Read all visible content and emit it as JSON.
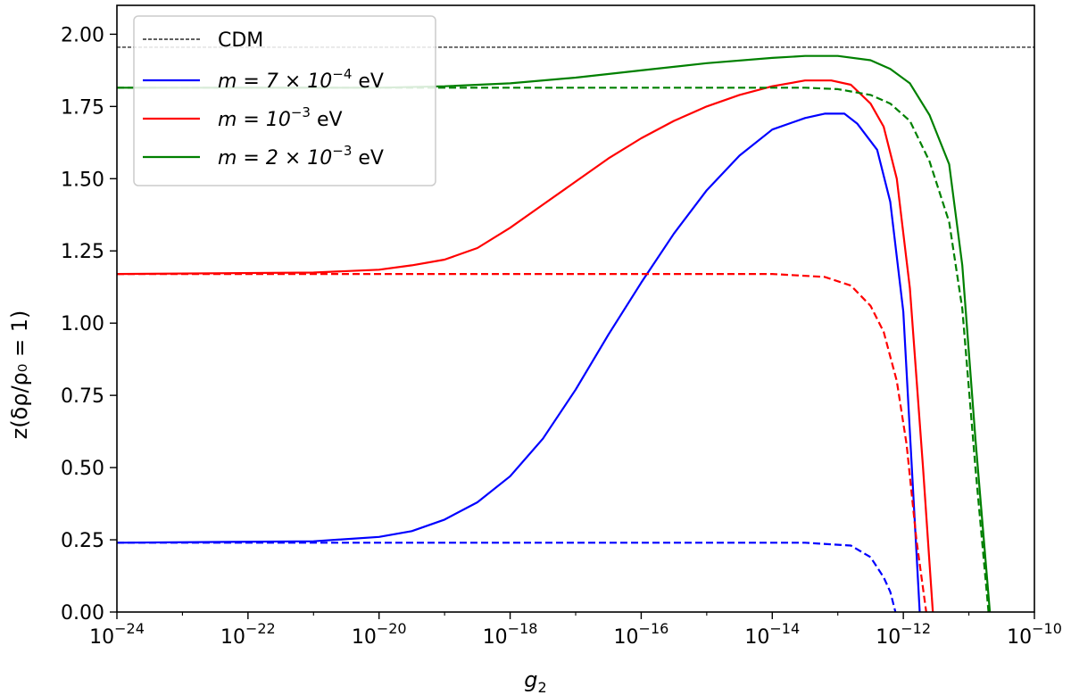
{
  "chart_data": {
    "type": "line",
    "xscale": "log",
    "xlim": [
      1e-24,
      1e-10
    ],
    "ylim": [
      0,
      2.1
    ],
    "xlabel": "g",
    "xlabel_sub": "2",
    "ylabel": "z(δρ/ρ₀ = 1)",
    "grid": false,
    "legend_position": "top-left",
    "x_ticks": [
      {
        "base": "10",
        "exp": "−24"
      },
      {
        "base": "10",
        "exp": "−22"
      },
      {
        "base": "10",
        "exp": "−20"
      },
      {
        "base": "10",
        "exp": "−18"
      },
      {
        "base": "10",
        "exp": "−16"
      },
      {
        "base": "10",
        "exp": "−14"
      },
      {
        "base": "10",
        "exp": "−12"
      },
      {
        "base": "10",
        "exp": "−10"
      }
    ],
    "y_ticks": [
      "0.00",
      "0.25",
      "0.50",
      "0.75",
      "1.00",
      "1.25",
      "1.50",
      "1.75",
      "2.00"
    ],
    "cdm": {
      "name": "CDM",
      "value": 1.955,
      "color": "#000000"
    },
    "series": [
      {
        "name_prefix": "m = 7 × 10",
        "name_exp": "−4",
        "name_suffix": " eV",
        "color": "#0000ff",
        "solid": [
          [
            -24,
            0.24
          ],
          [
            -21,
            0.245
          ],
          [
            -20,
            0.26
          ],
          [
            -19.5,
            0.28
          ],
          [
            -19,
            0.32
          ],
          [
            -18.5,
            0.38
          ],
          [
            -18,
            0.47
          ],
          [
            -17.5,
            0.6
          ],
          [
            -17,
            0.77
          ],
          [
            -16.5,
            0.96
          ],
          [
            -16,
            1.14
          ],
          [
            -15.5,
            1.31
          ],
          [
            -15,
            1.46
          ],
          [
            -14.5,
            1.58
          ],
          [
            -14,
            1.67
          ],
          [
            -13.5,
            1.71
          ],
          [
            -13.2,
            1.725
          ],
          [
            -12.9,
            1.725
          ],
          [
            -12.7,
            1.69
          ],
          [
            -12.4,
            1.6
          ],
          [
            -12.2,
            1.42
          ],
          [
            -12.0,
            1.04
          ],
          [
            -11.75,
            0.0
          ]
        ],
        "dashed": [
          [
            -24,
            0.24
          ],
          [
            -15,
            0.24
          ],
          [
            -13.5,
            0.24
          ],
          [
            -12.8,
            0.23
          ],
          [
            -12.5,
            0.19
          ],
          [
            -12.3,
            0.12
          ],
          [
            -12.2,
            0.07
          ],
          [
            -12.12,
            0.0
          ]
        ]
      },
      {
        "name_prefix": "m = 10",
        "name_exp": "−3",
        "name_suffix": " eV",
        "color": "#ff0000",
        "solid": [
          [
            -24,
            1.17
          ],
          [
            -21,
            1.175
          ],
          [
            -20,
            1.185
          ],
          [
            -19.5,
            1.2
          ],
          [
            -19,
            1.22
          ],
          [
            -18.5,
            1.26
          ],
          [
            -18,
            1.33
          ],
          [
            -17.5,
            1.41
          ],
          [
            -17,
            1.49
          ],
          [
            -16.5,
            1.57
          ],
          [
            -16,
            1.64
          ],
          [
            -15.5,
            1.7
          ],
          [
            -15,
            1.75
          ],
          [
            -14.5,
            1.79
          ],
          [
            -14,
            1.82
          ],
          [
            -13.5,
            1.84
          ],
          [
            -13.1,
            1.84
          ],
          [
            -12.8,
            1.825
          ],
          [
            -12.5,
            1.76
          ],
          [
            -12.3,
            1.68
          ],
          [
            -12.1,
            1.5
          ],
          [
            -11.9,
            1.12
          ],
          [
            -11.7,
            0.5
          ],
          [
            -11.55,
            0.0
          ]
        ],
        "dashed": [
          [
            -24,
            1.17
          ],
          [
            -17,
            1.17
          ],
          [
            -14,
            1.17
          ],
          [
            -13.2,
            1.16
          ],
          [
            -12.8,
            1.13
          ],
          [
            -12.5,
            1.06
          ],
          [
            -12.3,
            0.97
          ],
          [
            -12.1,
            0.8
          ],
          [
            -11.95,
            0.58
          ],
          [
            -11.8,
            0.25
          ],
          [
            -11.65,
            0.0
          ]
        ]
      },
      {
        "name_prefix": "m = 2 × 10",
        "name_exp": "−3",
        "name_suffix": " eV",
        "color": "#008000",
        "solid": [
          [
            -24,
            1.815
          ],
          [
            -20,
            1.815
          ],
          [
            -19,
            1.82
          ],
          [
            -18,
            1.83
          ],
          [
            -17,
            1.85
          ],
          [
            -16,
            1.875
          ],
          [
            -15,
            1.9
          ],
          [
            -14,
            1.918
          ],
          [
            -13.5,
            1.925
          ],
          [
            -13,
            1.925
          ],
          [
            -12.5,
            1.91
          ],
          [
            -12.2,
            1.88
          ],
          [
            -11.9,
            1.83
          ],
          [
            -11.6,
            1.72
          ],
          [
            -11.3,
            1.55
          ],
          [
            -11.1,
            1.2
          ],
          [
            -10.9,
            0.6
          ],
          [
            -10.68,
            0.0
          ]
        ],
        "dashed": [
          [
            -24,
            1.815
          ],
          [
            -16,
            1.815
          ],
          [
            -13.5,
            1.815
          ],
          [
            -13,
            1.81
          ],
          [
            -12.5,
            1.79
          ],
          [
            -12.2,
            1.76
          ],
          [
            -11.9,
            1.7
          ],
          [
            -11.6,
            1.56
          ],
          [
            -11.3,
            1.35
          ],
          [
            -11.1,
            1.05
          ],
          [
            -10.9,
            0.5
          ],
          [
            -10.7,
            0.0
          ]
        ]
      }
    ]
  }
}
